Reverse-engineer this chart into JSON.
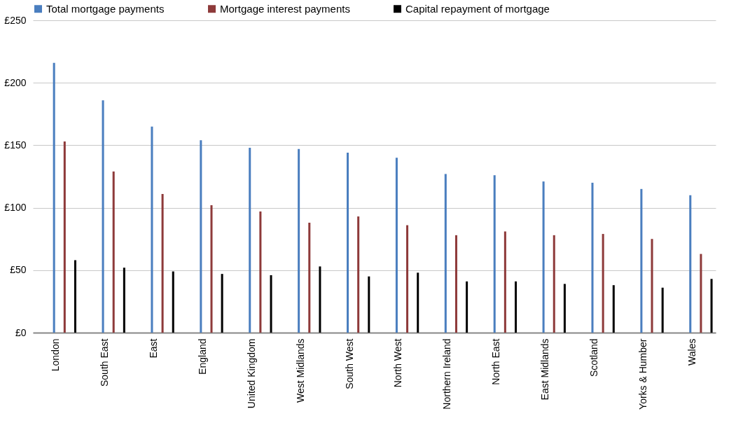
{
  "chart_data": {
    "type": "bar",
    "categories": [
      "London",
      "South East",
      "East",
      "England",
      "United Kingdom",
      "West Midlands",
      "South West",
      "North West",
      "Northern Ireland",
      "North East",
      "East Midlands",
      "Scotland",
      "Yorks & Humber",
      "Wales"
    ],
    "series": [
      {
        "name": "Total mortgage payments",
        "color": "#4a7ebf",
        "values": [
          216,
          186,
          165,
          154,
          148,
          147,
          144,
          140,
          127,
          126,
          121,
          120,
          115,
          110
        ]
      },
      {
        "name": "Mortgage interest payments",
        "color": "#8e3a3a",
        "values": [
          153,
          129,
          111,
          102,
          97,
          88,
          93,
          86,
          78,
          81,
          78,
          79,
          75,
          63
        ]
      },
      {
        "name": "Capital repayment of mortgage",
        "color": "#000000",
        "values": [
          58,
          52,
          49,
          47,
          46,
          53,
          45,
          48,
          41,
          41,
          39,
          38,
          36,
          43
        ]
      }
    ],
    "ylim": [
      0,
      250
    ],
    "yticks": [
      {
        "value": 0,
        "label": "£0"
      },
      {
        "value": 50,
        "label": "£50"
      },
      {
        "value": 100,
        "label": "£100"
      },
      {
        "value": 150,
        "label": "£150"
      },
      {
        "value": 200,
        "label": "£200"
      },
      {
        "value": 250,
        "label": "£250"
      }
    ],
    "grid": "y",
    "legend": "top"
  }
}
